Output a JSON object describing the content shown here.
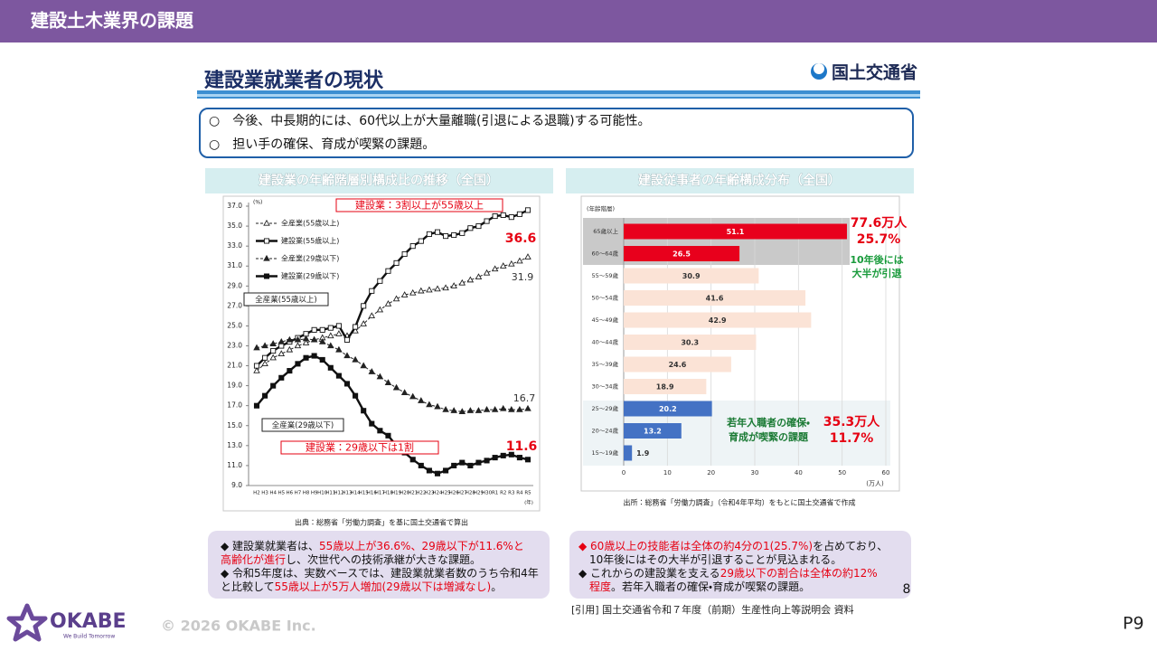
{
  "header": {
    "title": "建設土木業界の課題"
  },
  "slide": {
    "title": "建設業就業者の現状",
    "logo": "国土交通省",
    "points": [
      "○　今後、中長期的には、60代以上が大量離職(引退による退職)する可能性。",
      "○　担い手の確保、育成が喫緊の課題。"
    ]
  },
  "chart_data": [
    {
      "type": "line",
      "title": "建設業の年齢階層別構成比の推移（全国）",
      "y_unit": "(%)",
      "x_unit": "(年)",
      "categories": [
        "H2",
        "H3",
        "H4",
        "H5",
        "H6",
        "H7",
        "H8",
        "H9",
        "H10",
        "H11",
        "H12",
        "H13",
        "H14",
        "H15",
        "H16",
        "H17",
        "H18",
        "H19",
        "H20",
        "H21",
        "H22",
        "H23",
        "H24",
        "H25",
        "H26",
        "H27",
        "H28",
        "H29",
        "H30",
        "R1",
        "R2",
        "R3",
        "R4",
        "R5"
      ],
      "series": [
        {
          "name": "全産業(55歳以上)",
          "color": "#222222",
          "line": "dashed",
          "marker": "triangle-open",
          "values": [
            20.5,
            21.2,
            21.8,
            22.2,
            22.6,
            23.0,
            23.3,
            23.6,
            23.8,
            24.0,
            24.2,
            24.0,
            24.5,
            25.2,
            26.0,
            26.6,
            27.2,
            27.7,
            28.1,
            28.3,
            28.5,
            28.6,
            28.7,
            28.8,
            29.0,
            29.3,
            29.6,
            29.9,
            30.3,
            30.7,
            31.0,
            31.2,
            31.5,
            31.9
          ]
        },
        {
          "name": "建設業(55歳以上)",
          "color": "#111111",
          "line": "solid",
          "marker": "square-open",
          "values": [
            21.0,
            21.8,
            22.5,
            23.0,
            23.4,
            23.8,
            24.2,
            24.6,
            24.6,
            24.8,
            25.0,
            23.6,
            24.9,
            27.0,
            28.5,
            29.5,
            30.5,
            31.3,
            32.2,
            33.0,
            33.5,
            34.2,
            34.4,
            34.0,
            34.1,
            34.3,
            34.8,
            35.0,
            35.5,
            36.0,
            36.1,
            35.9,
            36.2,
            36.6
          ]
        },
        {
          "name": "全産業(29歳以下)",
          "color": "#222222",
          "line": "dashed",
          "marker": "triangle-filled",
          "values": [
            22.8,
            23.0,
            23.2,
            23.4,
            23.6,
            23.6,
            23.7,
            23.6,
            23.4,
            23.0,
            22.6,
            22.0,
            21.6,
            21.0,
            20.4,
            19.9,
            19.3,
            18.8,
            18.3,
            17.9,
            17.5,
            17.1,
            16.9,
            16.6,
            16.5,
            16.4,
            16.5,
            16.5,
            16.6,
            16.6,
            16.7,
            16.6,
            16.6,
            16.7
          ]
        },
        {
          "name": "建設業(29歳以下)",
          "color": "#111111",
          "line": "solid",
          "marker": "square-filled",
          "values": [
            17.0,
            18.0,
            19.0,
            19.8,
            20.5,
            21.2,
            21.8,
            22.0,
            21.6,
            20.8,
            20.0,
            19.2,
            18.0,
            16.5,
            15.2,
            14.5,
            14.0,
            13.0,
            12.3,
            11.6,
            11.0,
            10.5,
            10.2,
            10.5,
            11.0,
            11.3,
            11.0,
            11.3,
            11.5,
            11.8,
            12.0,
            12.1,
            11.8,
            11.6
          ]
        }
      ],
      "ylim": [
        9,
        37
      ],
      "yticks": [
        {
          "value": 9,
          "label": "9.0"
        },
        {
          "value": 11,
          "label": "11.0"
        },
        {
          "value": 13,
          "label": "13.0"
        },
        {
          "value": 15,
          "label": "15.0"
        },
        {
          "value": 17,
          "label": "17.0"
        },
        {
          "value": 19,
          "label": "19.0"
        },
        {
          "value": 21,
          "label": "21.0"
        },
        {
          "value": 23,
          "label": "23.0"
        },
        {
          "value": 25,
          "label": "25.0"
        },
        {
          "value": 27,
          "label": "27.0"
        },
        {
          "value": 29,
          "label": "29.0"
        },
        {
          "value": 31,
          "label": "31.0"
        },
        {
          "value": 33,
          "label": "33.0"
        },
        {
          "value": 35,
          "label": "35.0"
        },
        {
          "value": 37,
          "label": "37.0"
        }
      ],
      "grid": false,
      "annotations": [
        "建設業：3割以上が55歳以上",
        "建設業：29歳以下は1割",
        "全産業(55歳以上)",
        "全産業(29歳以下)"
      ],
      "source": "出典：総務省「労働力調査」を基に国土交通省で算出"
    },
    {
      "type": "barh",
      "title": "建設従事者の年齢構成分布（全国）",
      "y_label": "(年齢階層)",
      "x_unit": "(万人)",
      "categories": [
        "65歳以上",
        "60～64歳",
        "55～59歳",
        "50～54歳",
        "45～49歳",
        "40～44歳",
        "35～39歳",
        "30～34歳",
        "25～29歳",
        "20～24歳",
        "15～19歳"
      ],
      "values": [
        51.1,
        26.5,
        30.9,
        41.6,
        42.9,
        30.3,
        24.6,
        18.9,
        20.2,
        13.2,
        1.9
      ],
      "colors": [
        "#e8001c",
        "#e8001c",
        "#fbe3d6",
        "#fbe3d6",
        "#fbe3d6",
        "#fbe3d6",
        "#fbe3d6",
        "#fbe3d6",
        "#4472c4",
        "#4472c4",
        "#4472c4"
      ],
      "xlim": [
        0,
        60
      ],
      "xticks": [
        0,
        10,
        20,
        30,
        40,
        50,
        60
      ],
      "grid": true,
      "annotations": [
        "77.6万人",
        "25.7%",
        "10年後には",
        "大半が引退",
        "若年入職者の確保・",
        "育成が喫緊の課題",
        "35.3万人",
        "11.7%"
      ],
      "source": "出所：総務省「労働力調査」（令和4年平均）をもとに国土交通省で作成"
    }
  ],
  "notes": [
    {
      "lines": [
        [
          {
            "text": "◆ 建設業就業者は、"
          },
          {
            "text": "55歳以上が36.6%、29歳以下が11.6%と",
            "color": "#e60012"
          }
        ],
        [
          {
            "text": "高齢化が進行",
            "color": "#e60012"
          },
          {
            "text": "し、次世代への技術承継が大きな課題。"
          }
        ],
        [
          {
            "text": "◆ 令和5年度は、実数ベースでは、建設業就業者数のうち令和4年"
          }
        ],
        [
          {
            "text": "と比較して"
          },
          {
            "text": "55歳以上が5万人増加(29歳以下は増減なし)",
            "color": "#e60012"
          },
          {
            "text": "。"
          }
        ]
      ]
    },
    {
      "lines": [
        [
          {
            "text": "◆ 60歳以上の技能者は全体の約4分の1(25.7%)",
            "color": "#e60012"
          },
          {
            "text": "を占めており、"
          }
        ],
        [
          {
            "text": "　10年後にはその大半が引退することが見込まれる。"
          }
        ],
        [
          {
            "text": "◆ これからの建設業を支える"
          },
          {
            "text": "29歳以下の割合は全体の約12%",
            "color": "#e60012"
          }
        ],
        [
          {
            "text": "　"
          },
          {
            "text": "程度",
            "color": "#e60012"
          },
          {
            "text": "。若年入職者の確保・育成が喫緊の課題。"
          }
        ]
      ]
    }
  ],
  "page_number": "8",
  "citation": "[引用] 国土交通省令和７年度（前期）生産性向上等説明会 資料",
  "footer": {
    "company": "OKABE",
    "tagline": "We Build Tomorrow",
    "copyright": "© 2026 OKABE Inc.",
    "page": "P9"
  }
}
